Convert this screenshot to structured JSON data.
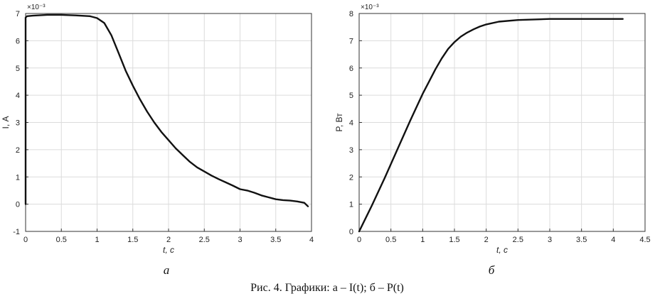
{
  "caption": "Рис. 4. Графики: а – I(t); б – P(t)",
  "chart_data": [
    {
      "type": "line",
      "panel_label": "а",
      "xlabel": "t, с",
      "ylabel": "I, А",
      "y_exponent_label": "×10⁻³",
      "xlim": [
        0,
        4
      ],
      "ylim": [
        -1,
        7
      ],
      "xticks": [
        0,
        0.5,
        1,
        1.5,
        2,
        2.5,
        3,
        3.5,
        4
      ],
      "xtick_labels": [
        "0",
        "0.5",
        "1",
        "1.5",
        "2",
        "2.5",
        "3",
        "3.5",
        "4"
      ],
      "yticks": [
        -1,
        0,
        1,
        2,
        3,
        4,
        5,
        6,
        7
      ],
      "ytick_labels": [
        "-1",
        "0",
        "1",
        "2",
        "3",
        "4",
        "5",
        "6",
        "7"
      ],
      "grid": true,
      "series": [
        {
          "x": [
            0,
            0,
            0.02,
            0.1,
            0.3,
            0.5,
            0.7,
            0.9,
            1.0,
            1.1,
            1.2,
            1.3,
            1.4,
            1.5,
            1.6,
            1.7,
            1.8,
            1.9,
            2.0,
            2.1,
            2.2,
            2.3,
            2.4,
            2.5,
            2.6,
            2.7,
            2.8,
            2.9,
            3.0,
            3.1,
            3.2,
            3.3,
            3.4,
            3.5,
            3.6,
            3.7,
            3.8,
            3.9,
            3.95
          ],
          "values": [
            0,
            6.85,
            6.9,
            6.92,
            6.95,
            6.95,
            6.93,
            6.9,
            6.83,
            6.65,
            6.2,
            5.55,
            4.9,
            4.35,
            3.85,
            3.4,
            3.0,
            2.65,
            2.35,
            2.05,
            1.8,
            1.55,
            1.35,
            1.2,
            1.05,
            0.92,
            0.8,
            0.68,
            0.55,
            0.5,
            0.42,
            0.32,
            0.25,
            0.18,
            0.15,
            0.13,
            0.1,
            0.05,
            -0.08
          ]
        }
      ]
    },
    {
      "type": "line",
      "panel_label": "б",
      "xlabel": "t, с",
      "ylabel": "P, Вт",
      "y_exponent_label": "×10⁻³",
      "xlim": [
        0,
        4.5
      ],
      "ylim": [
        0,
        8
      ],
      "xticks": [
        0,
        0.5,
        1,
        1.5,
        2,
        2.5,
        3,
        3.5,
        4,
        4.5
      ],
      "xtick_labels": [
        "0",
        "0.5",
        "1",
        "1.5",
        "2",
        "2.5",
        "3",
        "3.5",
        "4",
        "4.5"
      ],
      "yticks": [
        0,
        1,
        2,
        3,
        4,
        5,
        6,
        7,
        8
      ],
      "ytick_labels": [
        "0",
        "1",
        "2",
        "3",
        "4",
        "5",
        "6",
        "7",
        "8"
      ],
      "grid": true,
      "series": [
        {
          "x": [
            0,
            0.2,
            0.4,
            0.6,
            0.8,
            1.0,
            1.1,
            1.2,
            1.3,
            1.4,
            1.5,
            1.6,
            1.7,
            1.8,
            1.9,
            2.0,
            2.2,
            2.5,
            3.0,
            3.5,
            4.0,
            4.15
          ],
          "values": [
            0,
            0.95,
            1.95,
            3.0,
            4.05,
            5.05,
            5.5,
            5.95,
            6.35,
            6.7,
            6.95,
            7.15,
            7.3,
            7.42,
            7.52,
            7.6,
            7.7,
            7.76,
            7.8,
            7.8,
            7.8,
            7.8
          ]
        }
      ]
    }
  ]
}
